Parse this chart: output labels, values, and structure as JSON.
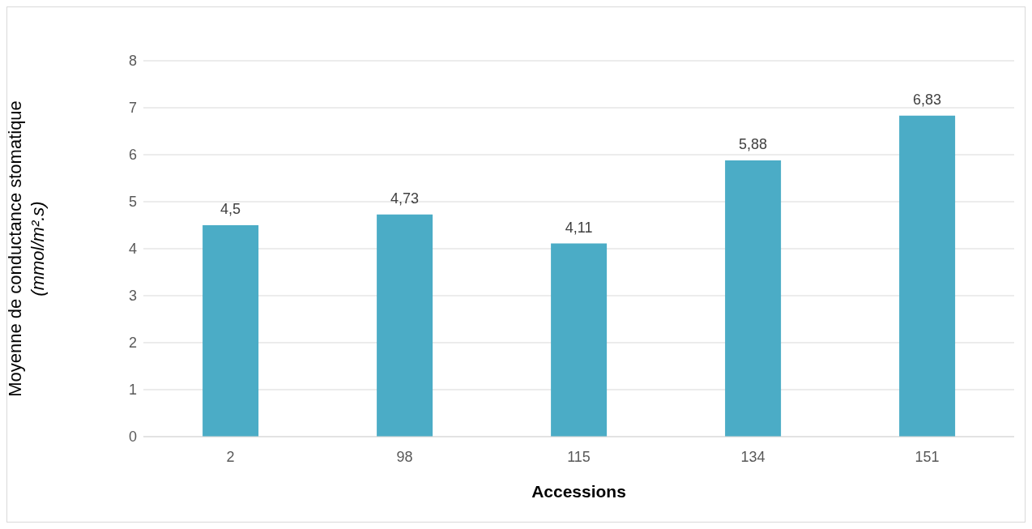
{
  "chart_data": {
    "type": "bar",
    "xlabel": "Accessions",
    "ylabel": "Moyenne de conductance stomatique (mmol/m².s)",
    "categories": [
      "2",
      "98",
      "115",
      "134",
      "151"
    ],
    "values": [
      4.5,
      4.73,
      4.11,
      5.88,
      6.83
    ],
    "value_labels": [
      "4,5",
      "4,73",
      "4,11",
      "5,88",
      "6,83"
    ],
    "color": "#4bacc6",
    "ylim": [
      0,
      8
    ],
    "yticks": [
      0,
      1,
      2,
      3,
      4,
      5,
      6,
      7,
      8
    ],
    "grid": "y"
  }
}
